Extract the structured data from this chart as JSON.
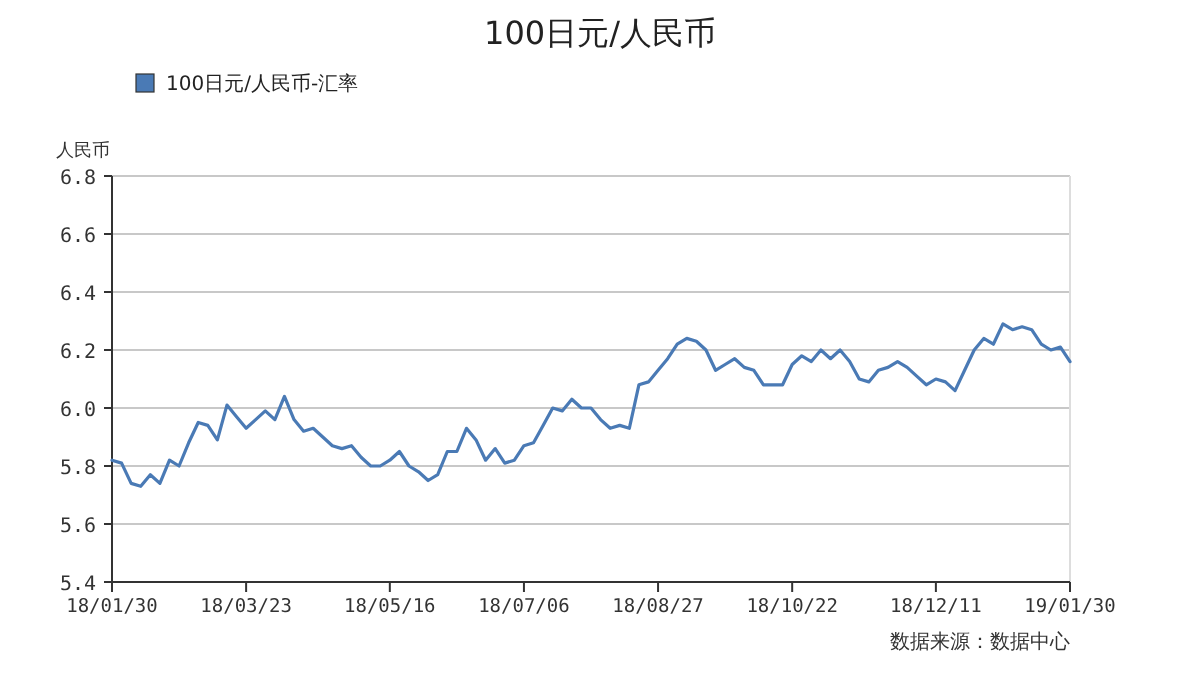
{
  "chart_data": {
    "type": "line",
    "title": "100日元/人民币",
    "ylabel": "人民币",
    "annotations": [
      "数据来源：数据中心"
    ],
    "legend": "top left",
    "grid": "y",
    "ylim": [
      5.4,
      6.8
    ],
    "categories": [
      "18/01/30",
      null,
      null,
      null,
      null,
      null,
      null,
      null,
      null,
      null,
      null,
      null,
      null,
      null,
      "18/03/23",
      null,
      null,
      null,
      null,
      null,
      null,
      null,
      null,
      null,
      null,
      null,
      null,
      null,
      null,
      "18/05/16",
      null,
      null,
      null,
      null,
      null,
      null,
      null,
      null,
      null,
      null,
      null,
      null,
      null,
      "18/07/06",
      null,
      null,
      null,
      null,
      null,
      null,
      null,
      null,
      null,
      null,
      null,
      null,
      null,
      "18/08/27",
      null,
      null,
      null,
      null,
      null,
      null,
      null,
      null,
      null,
      null,
      null,
      null,
      null,
      "18/10/22",
      null,
      null,
      null,
      null,
      null,
      null,
      null,
      null,
      null,
      null,
      null,
      null,
      null,
      null,
      "18/12/11",
      null,
      null,
      null,
      null,
      null,
      null,
      null,
      null,
      null,
      null,
      null,
      null,
      null,
      "19/01/30"
    ],
    "yticks": [
      5.4,
      5.6,
      5.8,
      {
        "value": 6,
        "label": "6.0"
      },
      6.2,
      6.4,
      6.6,
      6.8
    ],
    "series": [
      {
        "name": "100日元/人民币-汇率",
        "color": "#4a7ab5",
        "values": [
          5.82,
          5.81,
          5.74,
          5.73,
          5.77,
          5.74,
          5.82,
          5.8,
          5.88,
          5.95,
          5.94,
          5.89,
          6.01,
          5.97,
          5.93,
          5.96,
          5.99,
          5.96,
          6.04,
          5.96,
          5.92,
          5.93,
          5.9,
          5.87,
          5.86,
          5.87,
          5.83,
          5.8,
          5.8,
          5.82,
          5.85,
          5.8,
          5.78,
          5.75,
          5.77,
          5.85,
          5.85,
          5.93,
          5.89,
          5.82,
          5.86,
          5.81,
          5.82,
          5.87,
          5.88,
          5.94,
          6.0,
          5.99,
          6.03,
          6.0,
          6.0,
          5.96,
          5.93,
          5.94,
          5.93,
          6.08,
          6.09,
          6.13,
          6.17,
          6.22,
          6.24,
          6.23,
          6.2,
          6.13,
          6.15,
          6.17,
          6.14,
          6.13,
          6.08,
          6.08,
          6.08,
          6.15,
          6.18,
          6.16,
          6.2,
          6.17,
          6.2,
          6.16,
          6.1,
          6.09,
          6.13,
          6.14,
          6.16,
          6.14,
          6.11,
          6.08,
          6.1,
          6.09,
          6.06,
          6.13,
          6.2,
          6.24,
          6.22,
          6.29,
          6.27,
          6.28,
          6.27,
          6.22,
          6.2,
          6.21,
          6.16
        ]
      }
    ]
  }
}
